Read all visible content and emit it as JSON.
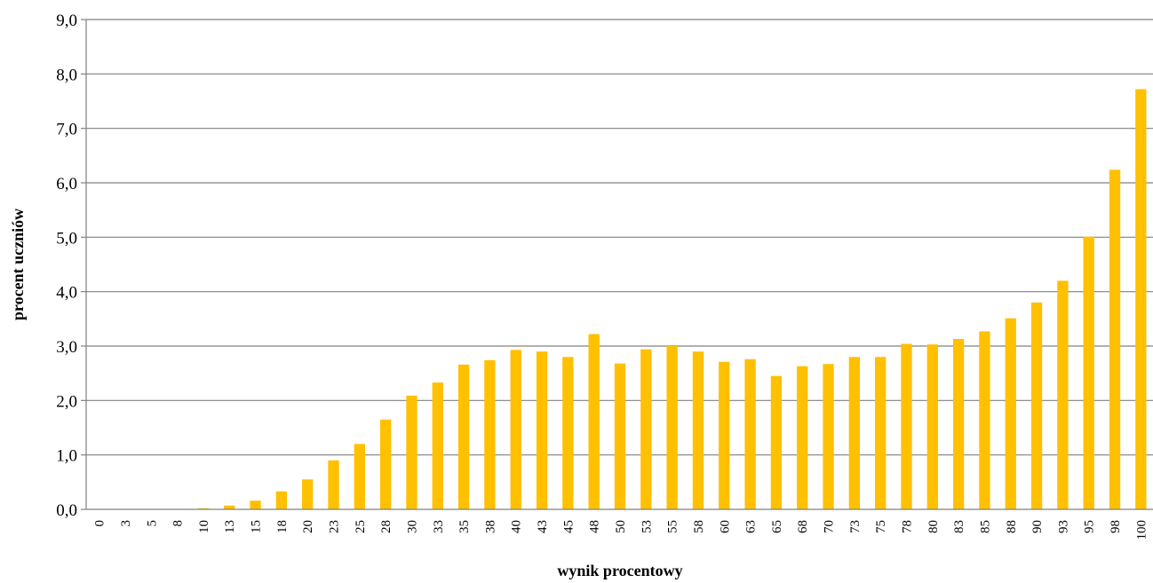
{
  "chart_data": {
    "type": "bar",
    "title": "",
    "xlabel": "wynik procentowy",
    "ylabel": "procent uczniów",
    "ylim": [
      0,
      9
    ],
    "yticks": [
      "0,0",
      "1,0",
      "2,0",
      "3,0",
      "4,0",
      "5,0",
      "6,0",
      "7,0",
      "8,0",
      "9,0"
    ],
    "grid": true,
    "legend": "none",
    "bar_color": "#FFC000",
    "grid_color": "#808080",
    "categories": [
      "0",
      "3",
      "5",
      "8",
      "10",
      "13",
      "15",
      "18",
      "20",
      "23",
      "25",
      "28",
      "30",
      "33",
      "35",
      "38",
      "40",
      "43",
      "45",
      "48",
      "50",
      "53",
      "55",
      "58",
      "60",
      "63",
      "65",
      "68",
      "70",
      "73",
      "75",
      "78",
      "80",
      "83",
      "85",
      "88",
      "90",
      "93",
      "95",
      "98",
      "100"
    ],
    "values": [
      0.0,
      0.0,
      0.0,
      0.0,
      0.02,
      0.07,
      0.16,
      0.33,
      0.55,
      0.9,
      1.2,
      1.65,
      2.09,
      2.33,
      2.66,
      2.74,
      2.93,
      2.9,
      2.8,
      3.22,
      2.68,
      2.94,
      3.0,
      2.9,
      2.71,
      2.76,
      2.45,
      2.63,
      2.67,
      2.8,
      2.8,
      3.04,
      3.03,
      3.13,
      3.27,
      3.51,
      3.8,
      4.2,
      5.01,
      6.24,
      7.72
    ]
  }
}
